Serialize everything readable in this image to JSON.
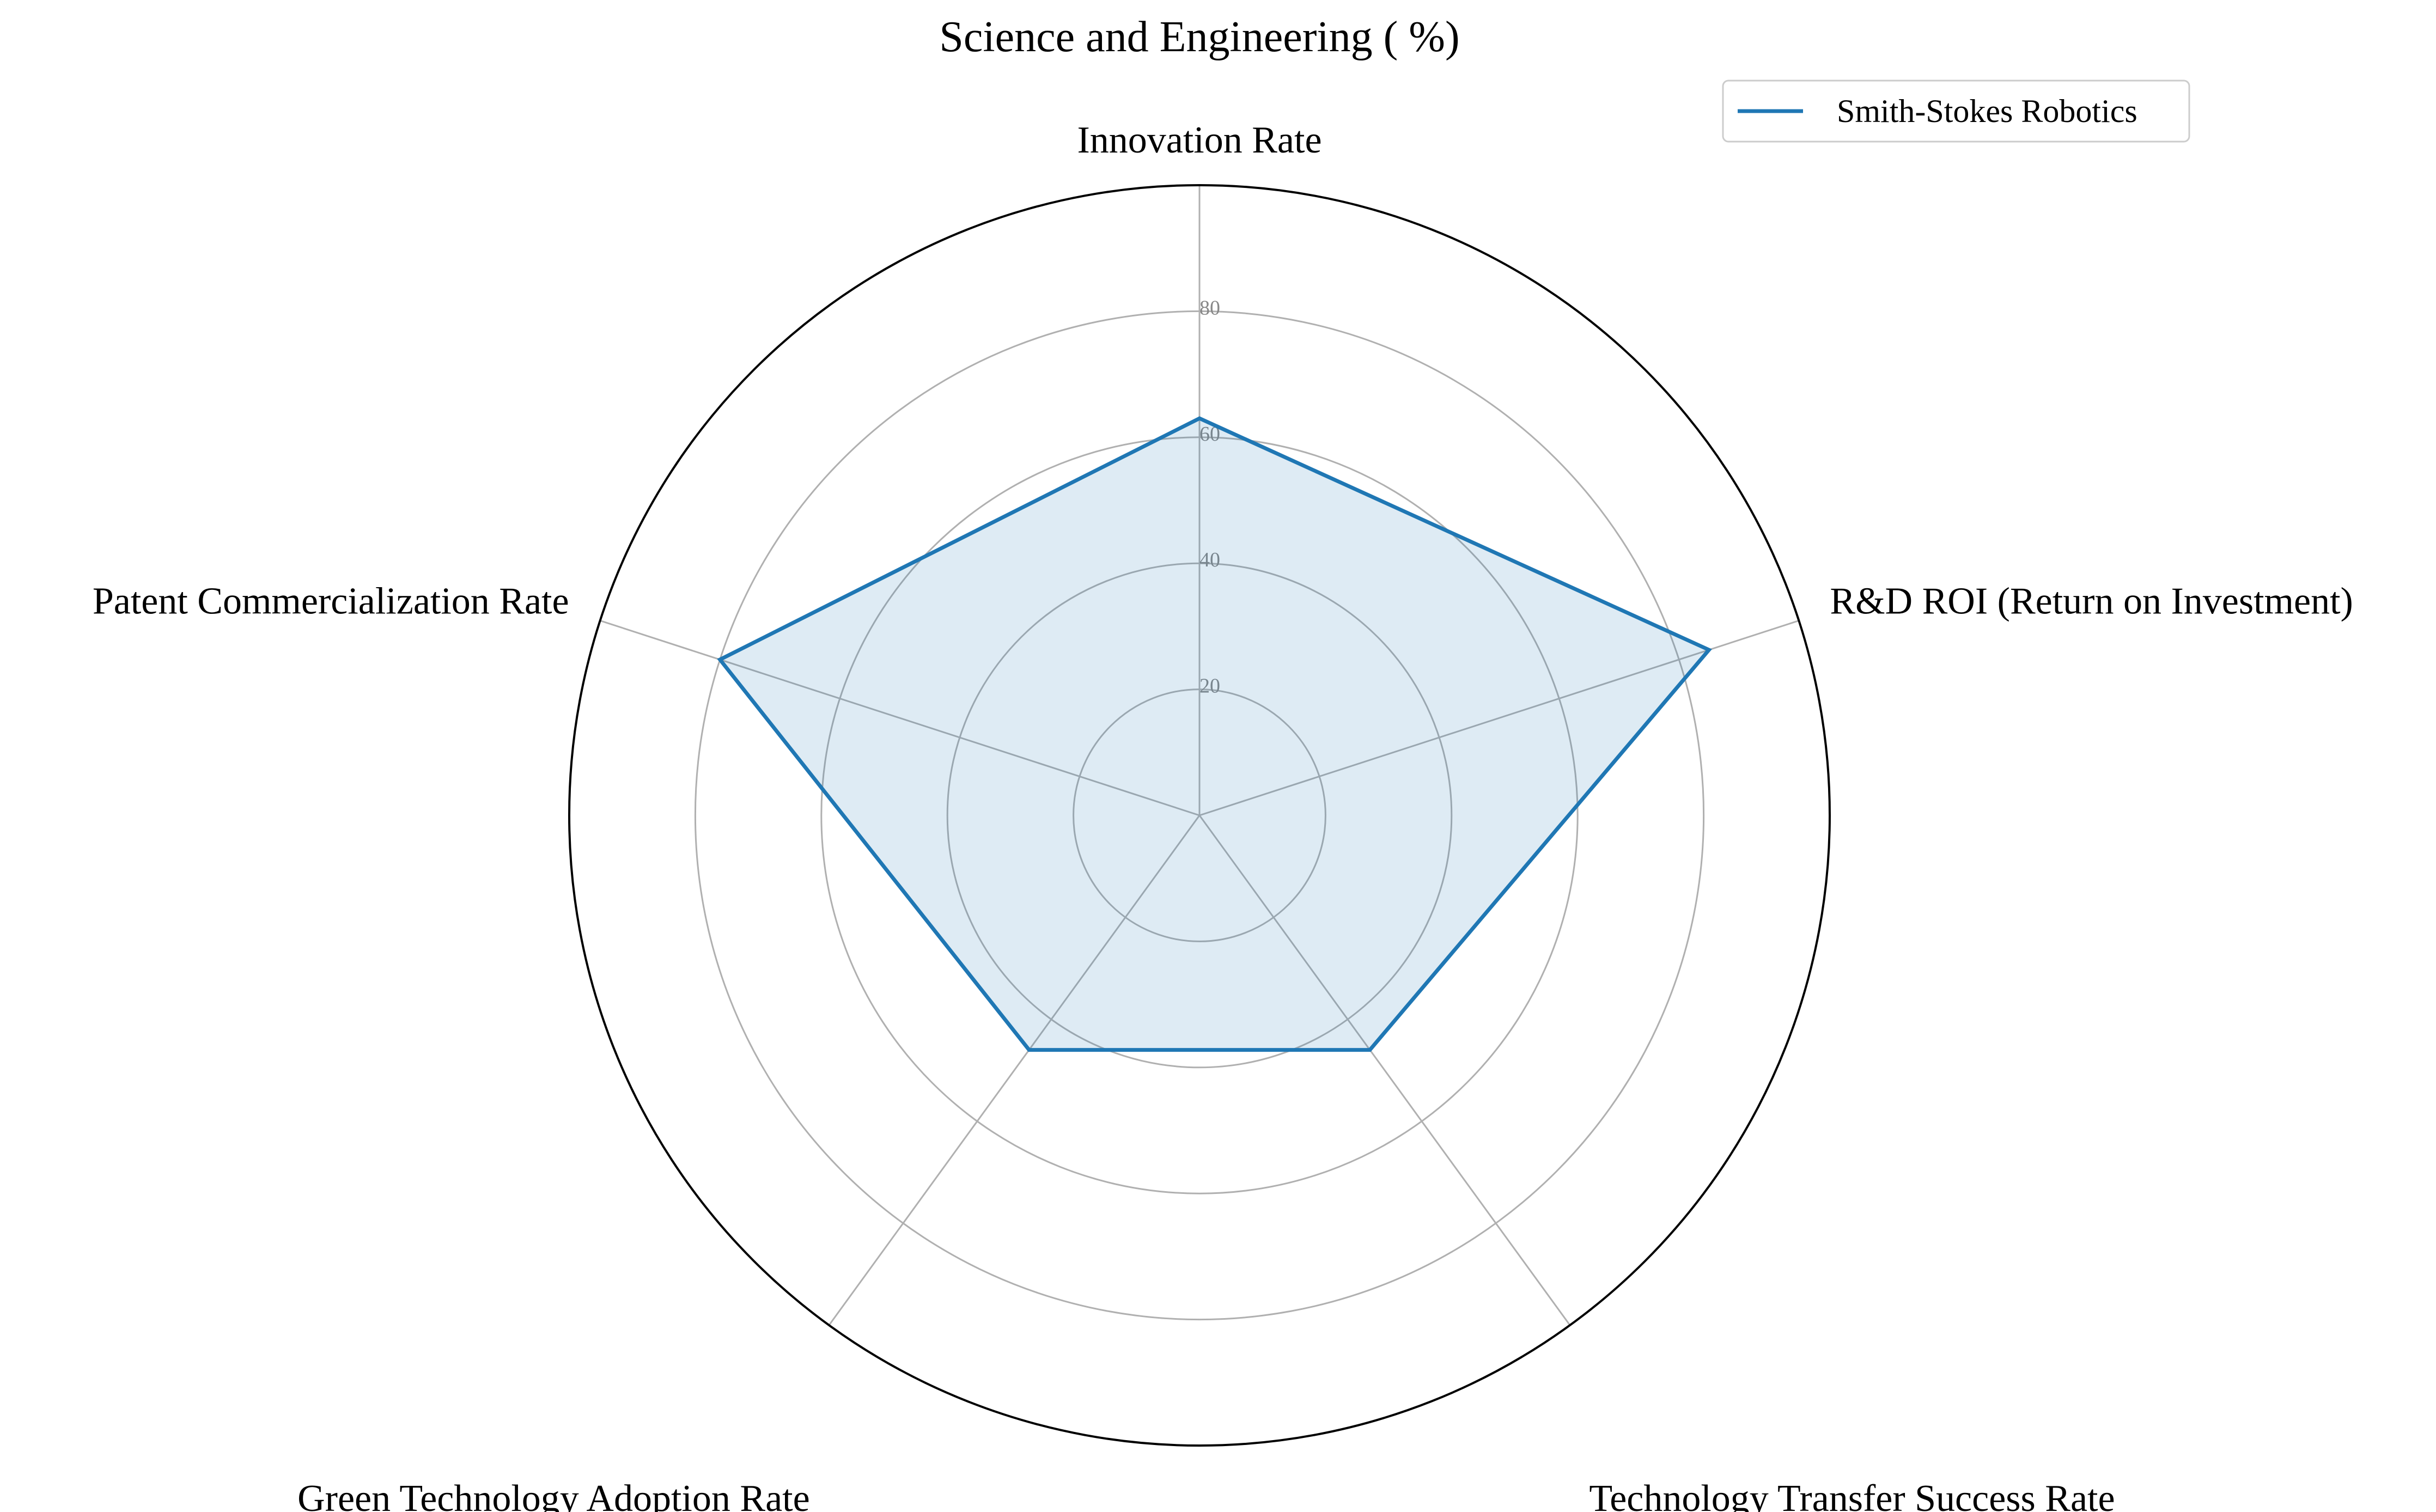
{
  "chart_data": {
    "type": "radar",
    "title": "Science and Engineering ( %)",
    "axes": [
      "Innovation Rate",
      "R&D ROI (Return on Investment)",
      "Technology Transfer Success Rate",
      "Green Technology Adoption Rate",
      "Patent Commercialization Rate"
    ],
    "rlim": [
      0,
      100
    ],
    "radial_ticks": [
      20,
      40,
      60,
      80
    ],
    "grid": true,
    "legend_position": "top-right",
    "series": [
      {
        "name": "Smith-Stokes Robotics",
        "values": [
          63,
          85,
          46,
          46,
          80
        ]
      }
    ],
    "colors": {
      "series_line": "#1f77b4",
      "series_fill": "#1f77b4",
      "grid": "#b0b0b0",
      "outer_frame": "#000000"
    }
  }
}
